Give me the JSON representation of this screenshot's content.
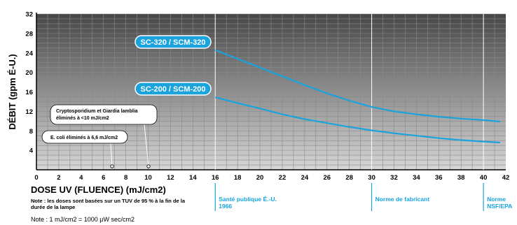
{
  "chart_data": {
    "type": "line",
    "title": "",
    "xlabel": "DOSE UV (FLUENCE) (mJ/cm2)",
    "ylabel": "DÉBIT (gpm É-U.)",
    "xlim": [
      0,
      42
    ],
    "ylim": [
      0,
      32
    ],
    "x_ticks": [
      "0",
      "2",
      "4",
      "6",
      "8",
      "10",
      "12",
      "14",
      "16",
      "18",
      "20",
      "22",
      "24",
      "26",
      "28",
      "30",
      "32",
      "34",
      "36",
      "38",
      "40",
      "42"
    ],
    "y_ticks": [
      "4",
      "8",
      "12",
      "16",
      "20",
      "24",
      "28",
      "32"
    ],
    "grid": true,
    "series": [
      {
        "name": "SC-320 / SCM-320",
        "color": "#1aa3dd",
        "points": [
          [
            16,
            24.6
          ],
          [
            18,
            22.8
          ],
          [
            20,
            21.0
          ],
          [
            22,
            19.2
          ],
          [
            24,
            17.4
          ],
          [
            26,
            15.7
          ],
          [
            28,
            14.2
          ],
          [
            30,
            12.9
          ],
          [
            32,
            12.0
          ],
          [
            34,
            11.4
          ],
          [
            36,
            10.9
          ],
          [
            38,
            10.5
          ],
          [
            40,
            10.2
          ],
          [
            41.5,
            9.9
          ]
        ]
      },
      {
        "name": "SC-200 / SCM-200",
        "color": "#1aa3dd",
        "points": [
          [
            16,
            14.9
          ],
          [
            18,
            13.7
          ],
          [
            20,
            12.6
          ],
          [
            22,
            11.4
          ],
          [
            24,
            10.4
          ],
          [
            26,
            9.6
          ],
          [
            28,
            8.8
          ],
          [
            30,
            8.1
          ],
          [
            32,
            7.5
          ],
          [
            34,
            7.0
          ],
          [
            36,
            6.5
          ],
          [
            38,
            6.1
          ],
          [
            40,
            5.8
          ],
          [
            41.5,
            5.6
          ]
        ]
      }
    ],
    "annotations": [
      {
        "text": "Cryptosporidium et Giardia lamblia éliminés à <10 mJ/cm2",
        "x": 10
      },
      {
        "text": "E. coli éliminés à 6,6 mJ/cm2",
        "x": 6.6
      }
    ],
    "reference_lines": [
      {
        "x": 16,
        "label": "Santé publique É.-U. 1966"
      },
      {
        "x": 30,
        "label": "Norme de fabricant"
      },
      {
        "x": 40,
        "label": "Norme NSF/EPA"
      }
    ]
  },
  "notes": {
    "note1": "Note : les doses sont basées sur un TUV de 95 % à la fin de la durée de la lampe",
    "note2": "Note : 1 mJ/cm2 = 1000 µW sec/cm2"
  },
  "colors": {
    "accent": "#1aa3dd",
    "plot_top": "#4a4a4a",
    "plot_bottom": "#d4d4d4"
  }
}
